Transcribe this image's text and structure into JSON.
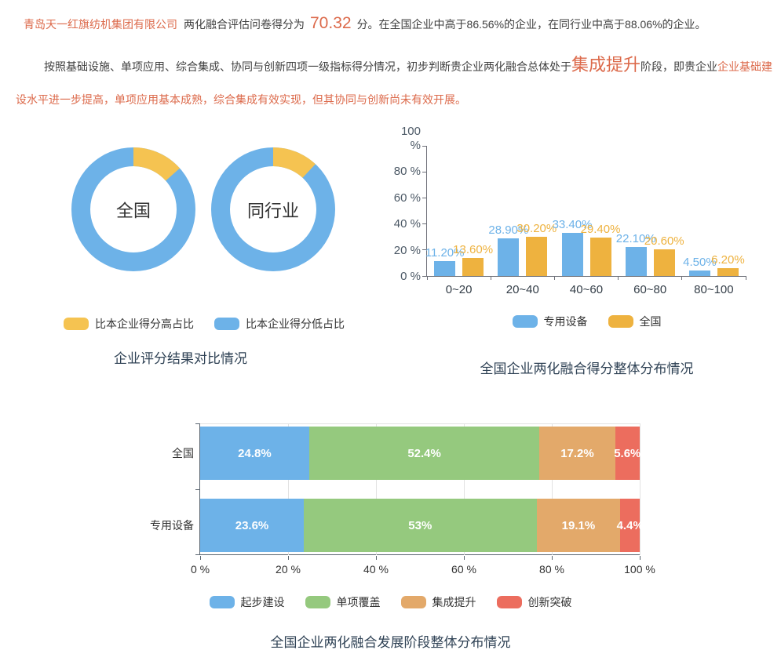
{
  "colors": {
    "blue": "#6db2e8",
    "yellow": "#f5c351",
    "orange": "#eeb23f",
    "green": "#95c97e",
    "tan": "#e3a96a",
    "red": "#ec6d5e",
    "accent_text": "#dc6a4b",
    "body_text": "#3f3f3f",
    "title_text": "#2f4255"
  },
  "intro": {
    "company_name": "青岛天一红旗纺机集团有限公司",
    "score_label": "两化融合评估问卷得分为",
    "score_value": "70.32",
    "score_comparison": "分。在全国企业中高于86.56%的企业，在同行业中高于88.06%的企业。",
    "analysis_lead": "按照基础设施、单项应用、综合集成、协同与创新四项一级指标得分情况，初步判断贵企业两化融合总体处于",
    "stage_name": "集成提升",
    "analysis_mid": "阶段，即贵企业",
    "analysis_detail": "企业基础建设水平进一步提高，单项应用基本成熟，综合集成有效实现，但其协同与创新尚未有效开展。"
  },
  "chart_data": [
    {
      "type": "pie",
      "subtype": "donut-pair",
      "title": "企业评分结果对比情况",
      "legend": [
        {
          "label": "比本企业得分高占比",
          "color": "#f5c351"
        },
        {
          "label": "比本企业得分低占比",
          "color": "#6db2e8"
        }
      ],
      "donuts": [
        {
          "center_label": "全国",
          "slices": [
            {
              "name": "比本企业得分高占比",
              "value": 13.44,
              "color": "#f5c351"
            },
            {
              "name": "比本企业得分低占比",
              "value": 86.56,
              "color": "#6db2e8"
            }
          ]
        },
        {
          "center_label": "同行业",
          "slices": [
            {
              "name": "比本企业得分高占比",
              "value": 11.94,
              "color": "#f5c351"
            },
            {
              "name": "比本企业得分低占比",
              "value": 88.06,
              "color": "#6db2e8"
            }
          ]
        }
      ]
    },
    {
      "type": "bar",
      "title": "全国企业两化融合得分整体分布情况",
      "categories": [
        "0~20",
        "20~40",
        "40~60",
        "60~80",
        "80~100"
      ],
      "series": [
        {
          "name": "专用设备",
          "color": "#6db2e8",
          "values": [
            11.2,
            28.9,
            33.4,
            22.1,
            4.5
          ],
          "labels": [
            "11.20%",
            "28.90%",
            "33.40%",
            "22.10%",
            "4.50%"
          ]
        },
        {
          "name": "全国",
          "color": "#eeb23f",
          "values": [
            13.6,
            30.2,
            29.4,
            20.6,
            6.2
          ],
          "labels": [
            "13.60%",
            "30.20%",
            "29.40%",
            "20.60%",
            "6.20%"
          ]
        }
      ],
      "y_ticks": [
        "0 %",
        "20 %",
        "40 %",
        "60 %",
        "80 %",
        "100 %"
      ],
      "ylim": [
        0,
        100
      ],
      "grid": false,
      "legend_position": "bottom",
      "legend": [
        {
          "label": "专用设备",
          "color": "#6db2e8"
        },
        {
          "label": "全国",
          "color": "#eeb23f"
        }
      ]
    },
    {
      "type": "bar",
      "subtype": "horizontal-stacked",
      "title": "全国企业两化融合发展阶段整体分布情况",
      "categories": [
        "全国",
        "专用设备"
      ],
      "segments": [
        "起步建设",
        "单项覆盖",
        "集成提升",
        "创新突破"
      ],
      "colors": [
        "#6db2e8",
        "#95c97e",
        "#e3a96a",
        "#ec6d5e"
      ],
      "rows": [
        {
          "label": "全国",
          "values": [
            24.8,
            52.4,
            17.2,
            5.6
          ],
          "labels": [
            "24.8%",
            "52.4%",
            "17.2%",
            "5.6%"
          ]
        },
        {
          "label": "专用设备",
          "values": [
            23.6,
            53,
            19.1,
            4.4
          ],
          "labels": [
            "23.6%",
            "53%",
            "19.1%",
            "4.4%"
          ]
        }
      ],
      "x_ticks": [
        "0 %",
        "20 %",
        "40 %",
        "60 %",
        "80 %",
        "100 %"
      ],
      "xlim": [
        0,
        100
      ],
      "grid": true,
      "legend_position": "bottom",
      "legend": [
        {
          "label": "起步建设",
          "color": "#6db2e8"
        },
        {
          "label": "单项覆盖",
          "color": "#95c97e"
        },
        {
          "label": "集成提升",
          "color": "#e3a96a"
        },
        {
          "label": "创新突破",
          "color": "#ec6d5e"
        }
      ]
    }
  ]
}
